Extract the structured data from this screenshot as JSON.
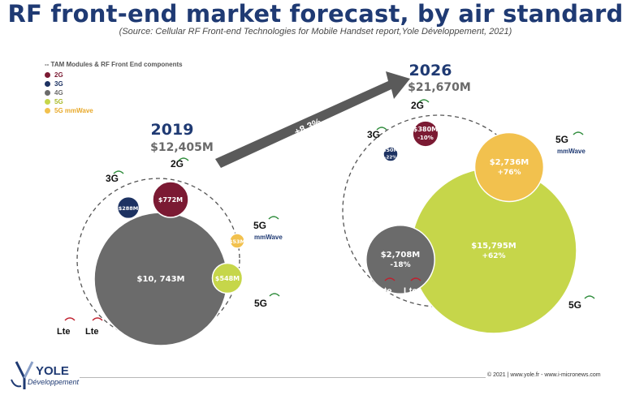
{
  "title": "RF front-end market forecast, by air standard",
  "subtitle": "(Source: Cellular RF Front-end Technologies for Mobile Handset report,Yole Développement, 2021)",
  "legend": {
    "header": "-- TAM Modules & RF Front End components",
    "items": [
      {
        "label": "2G",
        "color": "#7b1a33"
      },
      {
        "label": "3G",
        "color": "#1d3262"
      },
      {
        "label": "4G",
        "color": "#6b6b6b"
      },
      {
        "label": "5G",
        "color": "#c6d64a"
      },
      {
        "label": "5G mmWave",
        "color": "#f2c14e"
      }
    ]
  },
  "growth_label": "+8.3%",
  "badges": {
    "g3": "3G",
    "g2": "2G",
    "g5": "5G",
    "mmwave": "mmWave",
    "lte": "Lte"
  },
  "footer": {
    "logo_name": "YOLE",
    "logo_sub": "Développement",
    "copyright": "© 2021 | www.yole.fr - www.i-micronews.com"
  },
  "colors": {
    "2G": "#7b1a33",
    "3G": "#1d3262",
    "4G": "#6b6b6b",
    "5G": "#c6d64a",
    "5G mmWave": "#f2c14e",
    "title": "#1f3a73",
    "arrow": "#5a5a5a"
  },
  "chart_data": {
    "type": "bubble",
    "series": [
      {
        "year": "2019",
        "year_label": "2019",
        "total_label": "$12,405M",
        "total": 12405,
        "segments": [
          {
            "standard": "4G",
            "value": 10743,
            "label": "$10, 743M",
            "change": ""
          },
          {
            "standard": "2G",
            "value": 772,
            "label": "$772M",
            "change": ""
          },
          {
            "standard": "3G",
            "value": 288,
            "label": "$288M",
            "change": ""
          },
          {
            "standard": "5G",
            "value": 548,
            "label": "$548M",
            "change": ""
          },
          {
            "standard": "5G mmWave",
            "value": 53,
            "label": "$53M",
            "change": ""
          }
        ]
      },
      {
        "year": "2026",
        "year_label": "2026",
        "total_label": "$21,670M",
        "total": 21670,
        "segments": [
          {
            "standard": "5G",
            "value": 15795,
            "label": "$15,795M",
            "change": "+62%"
          },
          {
            "standard": "4G",
            "value": 2708,
            "label": "$2,708M",
            "change": "-18%"
          },
          {
            "standard": "5G mmWave",
            "value": 2736,
            "label": "$2,736M",
            "change": "+76%"
          },
          {
            "standard": "2G",
            "value": 380,
            "label": "$380M",
            "change": "-10%"
          },
          {
            "standard": "3G",
            "value": 50,
            "label": "$50M",
            "change": "-22%"
          }
        ]
      }
    ],
    "cagr": "+8.3%"
  }
}
